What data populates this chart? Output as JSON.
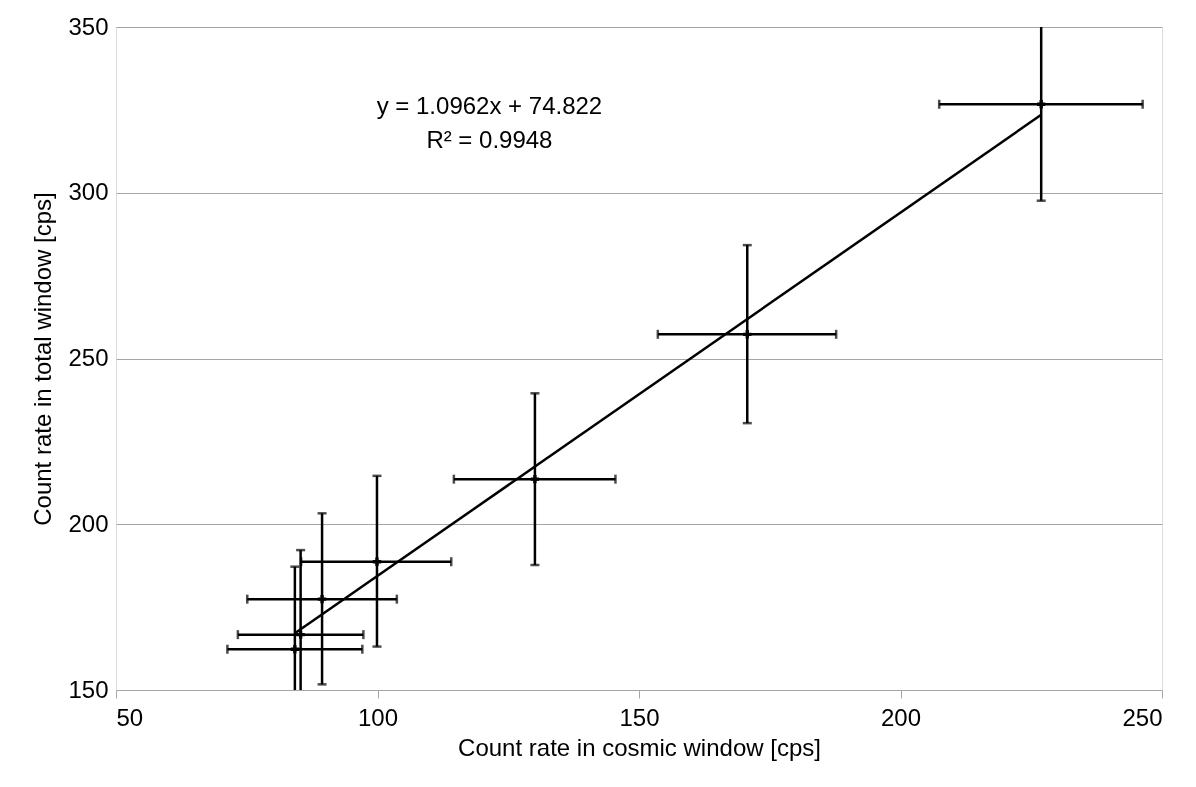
{
  "chart_data": {
    "type": "scatter",
    "xlabel": "Count rate in cosmic window [cps]",
    "ylabel": "Count rate in total window [cps]",
    "xlim": [
      50,
      250
    ],
    "xticks": [
      50,
      100,
      150,
      200,
      250
    ],
    "ylim": [
      150,
      350
    ],
    "yticks": [
      150,
      200,
      250,
      300,
      350
    ],
    "grid": "y",
    "annotations": [
      "y = 1.0962x + 74.822",
      "R² = 0.9948"
    ],
    "series": [
      {
        "color": "#000000",
        "marker": "cross",
        "x": [
          84.2,
          85.3,
          89.4,
          99.9,
          130.1,
          170.7,
          226.9
        ],
        "values": [
          162.3,
          166.7,
          177.4,
          188.7,
          213.6,
          257.3,
          326.7
        ],
        "xerrors": [
          [
            71.3,
            97.1
          ],
          [
            73.3,
            97.3
          ],
          [
            75.1,
            103.7
          ],
          [
            85.4,
            114.1
          ],
          [
            114.6,
            145.5
          ],
          [
            153.6,
            187.7
          ],
          [
            207.4,
            246.3
          ]
        ],
        "errors": [
          [
            150,
            187.2
          ],
          [
            150,
            192.2
          ],
          [
            151.7,
            203.3
          ],
          [
            163.1,
            214.6
          ],
          [
            187.7,
            239.5
          ],
          [
            230.5,
            284.2
          ],
          [
            297.6,
            350
          ]
        ]
      },
      {
        "type": "line",
        "marker": "none",
        "color": "#000000",
        "x": [
          84.2,
          226.9
        ],
        "values": [
          167.1,
          323.5
        ]
      }
    ]
  }
}
